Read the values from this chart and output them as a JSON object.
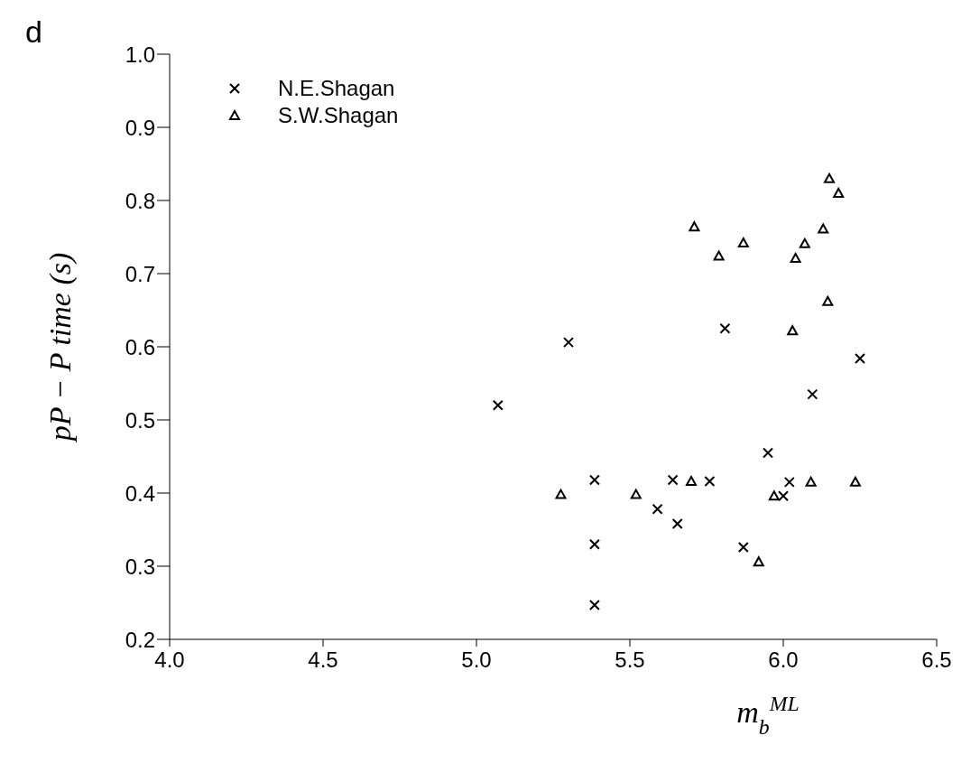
{
  "chart_data": {
    "type": "scatter",
    "xlabel": "m$_{b}$$^{ML}$",
    "ylabel": "pP − P time (s)",
    "annotations": [
      "d"
    ],
    "xlim": [
      4.0,
      6.5
    ],
    "xticks": [
      {
        "value": 4,
        "label": "4.0"
      },
      4.5,
      {
        "value": 5,
        "label": "5.0"
      },
      5.5,
      {
        "value": 6,
        "label": "6.0"
      },
      6.5
    ],
    "ylim": [
      0.2,
      1.0
    ],
    "yticks": [
      0.2,
      0.3,
      0.4,
      0.5,
      0.6,
      0.7,
      0.8,
      0.9,
      {
        "value": 1,
        "label": "1.0"
      }
    ],
    "grid": false,
    "legend": "top left",
    "series": [
      {
        "name": "N.E.Shagan",
        "color": "#000000",
        "marker": "cross",
        "x": [
          5.07,
          5.3,
          5.385,
          5.385,
          5.385,
          5.59,
          5.64,
          5.655,
          5.76,
          5.81,
          5.87,
          5.95,
          6.0,
          6.02,
          6.095,
          6.25
        ],
        "values": [
          0.52,
          0.606,
          0.418,
          0.33,
          0.247,
          0.378,
          0.418,
          0.358,
          0.416,
          0.625,
          0.326,
          0.455,
          0.396,
          0.415,
          0.535,
          0.584
        ]
      },
      {
        "name": "S.W.Shagan",
        "color": "#000000",
        "marker": "triangle",
        "x": [
          5.275,
          5.52,
          5.7,
          5.97,
          6.09,
          6.235,
          5.92,
          6.15,
          6.18,
          5.71,
          6.13,
          5.87,
          6.07,
          5.79,
          6.04,
          6.145,
          6.03
        ],
        "values": [
          0.398,
          0.398,
          0.416,
          0.396,
          0.415,
          0.415,
          0.306,
          0.83,
          0.81,
          0.764,
          0.761,
          0.742,
          0.741,
          0.724,
          0.721,
          0.662,
          0.622
        ]
      }
    ]
  }
}
